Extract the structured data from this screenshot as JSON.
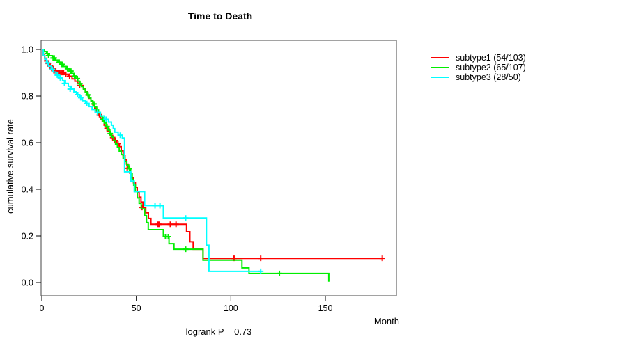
{
  "chart_data": {
    "type": "line",
    "subtype": "kaplan-meier-step",
    "title": "Time to Death",
    "xlabel": "Month",
    "ylabel": "cumulative survival rate",
    "footnote": "logrank P = 0.73",
    "xlim": [
      0,
      187
    ],
    "ylim": [
      0,
      1
    ],
    "x_ticks": [
      0,
      50,
      100,
      150
    ],
    "y_ticks": [
      0,
      0.2,
      0.4,
      0.6,
      0.8,
      1
    ],
    "grid": false,
    "legend_position": "right-outside",
    "box_color": "#454545",
    "series": [
      {
        "name": "subtype1 (54/103)",
        "color": "#ff0000",
        "end_month": 180.1,
        "steps": [
          [
            0,
            1.0
          ],
          [
            0.8,
            0.975
          ],
          [
            1.5,
            0.962
          ],
          [
            2.2,
            0.951
          ],
          [
            3,
            0.94
          ],
          [
            4,
            0.929
          ],
          [
            5,
            0.918
          ],
          [
            6,
            0.909
          ],
          [
            7.5,
            0.901
          ],
          [
            12,
            0.893
          ],
          [
            14,
            0.885
          ],
          [
            16,
            0.874
          ],
          [
            17.5,
            0.864
          ],
          [
            19,
            0.854
          ],
          [
            20.5,
            0.845
          ],
          [
            22,
            0.832
          ],
          [
            23,
            0.818
          ],
          [
            24,
            0.804
          ],
          [
            25,
            0.79
          ],
          [
            26,
            0.776
          ],
          [
            27,
            0.762
          ],
          [
            28,
            0.748
          ],
          [
            29,
            0.734
          ],
          [
            30,
            0.72
          ],
          [
            31,
            0.705
          ],
          [
            32,
            0.69
          ],
          [
            33,
            0.675
          ],
          [
            34,
            0.661
          ],
          [
            35,
            0.648
          ],
          [
            36,
            0.635
          ],
          [
            37,
            0.622
          ],
          [
            38,
            0.609
          ],
          [
            39.5,
            0.596
          ],
          [
            41,
            0.583
          ],
          [
            42,
            0.565
          ],
          [
            43,
            0.545
          ],
          [
            44,
            0.528
          ],
          [
            44.8,
            0.508
          ],
          [
            45.6,
            0.49
          ],
          [
            46.5,
            0.47
          ],
          [
            47.5,
            0.449
          ],
          [
            48.5,
            0.428
          ],
          [
            49.5,
            0.409
          ],
          [
            50.5,
            0.388
          ],
          [
            51.5,
            0.366
          ],
          [
            52.5,
            0.345
          ],
          [
            53.5,
            0.322
          ],
          [
            55,
            0.299
          ],
          [
            56.4,
            0.275
          ],
          [
            57.7,
            0.25
          ],
          [
            76.6,
            0.218
          ],
          [
            78.3,
            0.175
          ],
          [
            80.1,
            0.143
          ],
          [
            85.3,
            0.104
          ]
        ],
        "censors": [
          [
            2.6,
            0.951
          ],
          [
            3.4,
            0.94
          ],
          [
            4.4,
            0.929
          ],
          [
            5.3,
            0.918
          ],
          [
            5.9,
            0.918
          ],
          [
            6.4,
            0.909
          ],
          [
            6.9,
            0.909
          ],
          [
            7.4,
            0.909
          ],
          [
            8.1,
            0.901
          ],
          [
            8.8,
            0.901
          ],
          [
            9.5,
            0.901
          ],
          [
            10.2,
            0.901
          ],
          [
            10.9,
            0.901
          ],
          [
            11.5,
            0.901
          ],
          [
            12.7,
            0.893
          ],
          [
            14.7,
            0.885
          ],
          [
            20,
            0.845
          ],
          [
            30.5,
            0.72
          ],
          [
            34.5,
            0.661
          ],
          [
            37.5,
            0.622
          ],
          [
            38.7,
            0.609
          ],
          [
            40.3,
            0.596
          ],
          [
            45.2,
            0.49
          ],
          [
            53,
            0.322
          ],
          [
            61.4,
            0.25
          ],
          [
            62.1,
            0.25
          ],
          [
            68,
            0.25
          ],
          [
            71,
            0.25
          ],
          [
            101.7,
            0.104
          ],
          [
            115.8,
            0.104
          ],
          [
            180.1,
            0.104
          ]
        ]
      },
      {
        "name": "subtype2 (65/107)",
        "color": "#00ee00",
        "end_month": 151.8,
        "steps": [
          [
            0,
            1.0
          ],
          [
            1.2,
            0.991
          ],
          [
            2.5,
            0.982
          ],
          [
            4,
            0.973
          ],
          [
            5.5,
            0.963
          ],
          [
            7,
            0.954
          ],
          [
            8.5,
            0.945
          ],
          [
            10,
            0.936
          ],
          [
            11.5,
            0.927
          ],
          [
            13,
            0.917
          ],
          [
            14.5,
            0.907
          ],
          [
            16,
            0.897
          ],
          [
            17,
            0.886
          ],
          [
            18,
            0.875
          ],
          [
            19,
            0.864
          ],
          [
            20,
            0.853
          ],
          [
            21,
            0.841
          ],
          [
            22,
            0.829
          ],
          [
            23,
            0.817
          ],
          [
            24,
            0.805
          ],
          [
            25,
            0.792
          ],
          [
            26,
            0.779
          ],
          [
            27,
            0.766
          ],
          [
            28,
            0.753
          ],
          [
            29,
            0.74
          ],
          [
            30,
            0.727
          ],
          [
            31,
            0.713
          ],
          [
            32,
            0.699
          ],
          [
            33,
            0.684
          ],
          [
            34,
            0.669
          ],
          [
            35,
            0.654
          ],
          [
            36,
            0.639
          ],
          [
            37,
            0.624
          ],
          [
            38,
            0.609
          ],
          [
            39,
            0.594
          ],
          [
            40,
            0.579
          ],
          [
            41,
            0.564
          ],
          [
            42,
            0.549
          ],
          [
            43,
            0.534
          ],
          [
            44,
            0.519
          ],
          [
            45,
            0.504
          ],
          [
            46,
            0.488
          ],
          [
            47,
            0.466
          ],
          [
            47.8,
            0.442
          ],
          [
            48.6,
            0.418
          ],
          [
            49.5,
            0.39
          ],
          [
            50.5,
            0.363
          ],
          [
            51.5,
            0.34
          ],
          [
            52.6,
            0.316
          ],
          [
            54.4,
            0.287
          ],
          [
            55.4,
            0.257
          ],
          [
            56.3,
            0.227
          ],
          [
            64.3,
            0.197
          ],
          [
            67.3,
            0.167
          ],
          [
            69.9,
            0.143
          ],
          [
            85.3,
            0.096
          ],
          [
            105.9,
            0.063
          ],
          [
            109.6,
            0.039
          ],
          [
            151.8,
            0.004
          ]
        ],
        "censors": [
          [
            2.9,
            0.982
          ],
          [
            3.6,
            0.973
          ],
          [
            6,
            0.963
          ],
          [
            6.6,
            0.963
          ],
          [
            9.2,
            0.945
          ],
          [
            10.7,
            0.936
          ],
          [
            13.6,
            0.917
          ],
          [
            15.4,
            0.907
          ],
          [
            17.3,
            0.886
          ],
          [
            18.8,
            0.875
          ],
          [
            20.2,
            0.853
          ],
          [
            24.5,
            0.805
          ],
          [
            27.6,
            0.766
          ],
          [
            32.4,
            0.699
          ],
          [
            34.5,
            0.669
          ],
          [
            36.2,
            0.639
          ],
          [
            46.4,
            0.488
          ],
          [
            65.4,
            0.197
          ],
          [
            66.9,
            0.197
          ],
          [
            76.1,
            0.143
          ],
          [
            125.7,
            0.039
          ]
        ]
      },
      {
        "name": "subtype3 (28/50)",
        "color": "#00ffff",
        "end_month": 115.8,
        "steps": [
          [
            0,
            1.0
          ],
          [
            0.8,
            0.973
          ],
          [
            1.6,
            0.958
          ],
          [
            2.5,
            0.942
          ],
          [
            3.6,
            0.928
          ],
          [
            5,
            0.915
          ],
          [
            6.2,
            0.903
          ],
          [
            7.5,
            0.89
          ],
          [
            9,
            0.878
          ],
          [
            11,
            0.866
          ],
          [
            12.5,
            0.854
          ],
          [
            14,
            0.842
          ],
          [
            15.5,
            0.83
          ],
          [
            17,
            0.818
          ],
          [
            18.4,
            0.806
          ],
          [
            20,
            0.793
          ],
          [
            21.5,
            0.78
          ],
          [
            23.2,
            0.768
          ],
          [
            25,
            0.755
          ],
          [
            26.6,
            0.742
          ],
          [
            28.2,
            0.73
          ],
          [
            31,
            0.715
          ],
          [
            33.1,
            0.7
          ],
          [
            35.3,
            0.688
          ],
          [
            36.8,
            0.675
          ],
          [
            37.8,
            0.66
          ],
          [
            38.6,
            0.645
          ],
          [
            40.4,
            0.632
          ],
          [
            42.6,
            0.62
          ],
          [
            43.8,
            0.475
          ],
          [
            47.1,
            0.435
          ],
          [
            48.9,
            0.39
          ],
          [
            54.4,
            0.33
          ],
          [
            64.3,
            0.277
          ],
          [
            87.1,
            0.16
          ],
          [
            88.4,
            0.048
          ]
        ],
        "censors": [
          [
            3.1,
            0.942
          ],
          [
            5.6,
            0.915
          ],
          [
            8.2,
            0.89
          ],
          [
            9.8,
            0.878
          ],
          [
            12,
            0.854
          ],
          [
            15,
            0.83
          ],
          [
            19,
            0.806
          ],
          [
            20.6,
            0.793
          ],
          [
            23.8,
            0.768
          ],
          [
            29.5,
            0.73
          ],
          [
            34,
            0.7
          ],
          [
            41.5,
            0.632
          ],
          [
            59.9,
            0.33
          ],
          [
            62.5,
            0.33
          ],
          [
            76.1,
            0.277
          ],
          [
            115.8,
            0.048
          ]
        ]
      }
    ]
  }
}
